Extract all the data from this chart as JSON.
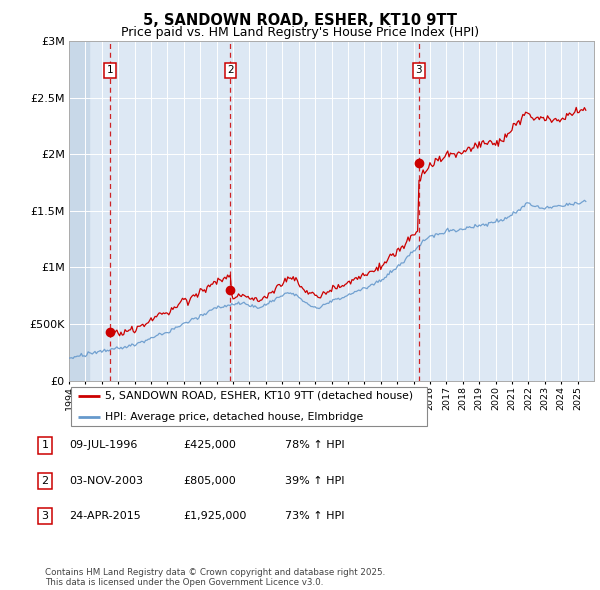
{
  "title": "5, SANDOWN ROAD, ESHER, KT10 9TT",
  "subtitle": "Price paid vs. HM Land Registry's House Price Index (HPI)",
  "ylim": [
    0,
    3000000
  ],
  "yticks": [
    0,
    500000,
    1000000,
    1500000,
    2000000,
    2500000,
    3000000
  ],
  "ytick_labels": [
    "£0",
    "£500K",
    "£1M",
    "£1.5M",
    "£2M",
    "£2.5M",
    "£3M"
  ],
  "year_start": 1994,
  "year_end": 2026,
  "sale_dates_num": [
    1996.52,
    2003.84,
    2015.31
  ],
  "sale_prices": [
    425000,
    805000,
    1925000
  ],
  "sale_labels": [
    "1",
    "2",
    "3"
  ],
  "sale_info": [
    {
      "label": "1",
      "date": "09-JUL-1996",
      "price": "£425,000",
      "hpi": "78% ↑ HPI"
    },
    {
      "label": "2",
      "date": "03-NOV-2003",
      "price": "£805,000",
      "hpi": "39% ↑ HPI"
    },
    {
      "label": "3",
      "date": "24-APR-2015",
      "price": "£1,925,000",
      "hpi": "73% ↑ HPI"
    }
  ],
  "line1_label": "5, SANDOWN ROAD, ESHER, KT10 9TT (detached house)",
  "line2_label": "HPI: Average price, detached house, Elmbridge",
  "line1_color": "#cc0000",
  "line2_color": "#6699cc",
  "bg_color": "#dde8f4",
  "footer": "Contains HM Land Registry data © Crown copyright and database right 2025.\nThis data is licensed under the Open Government Licence v3.0."
}
